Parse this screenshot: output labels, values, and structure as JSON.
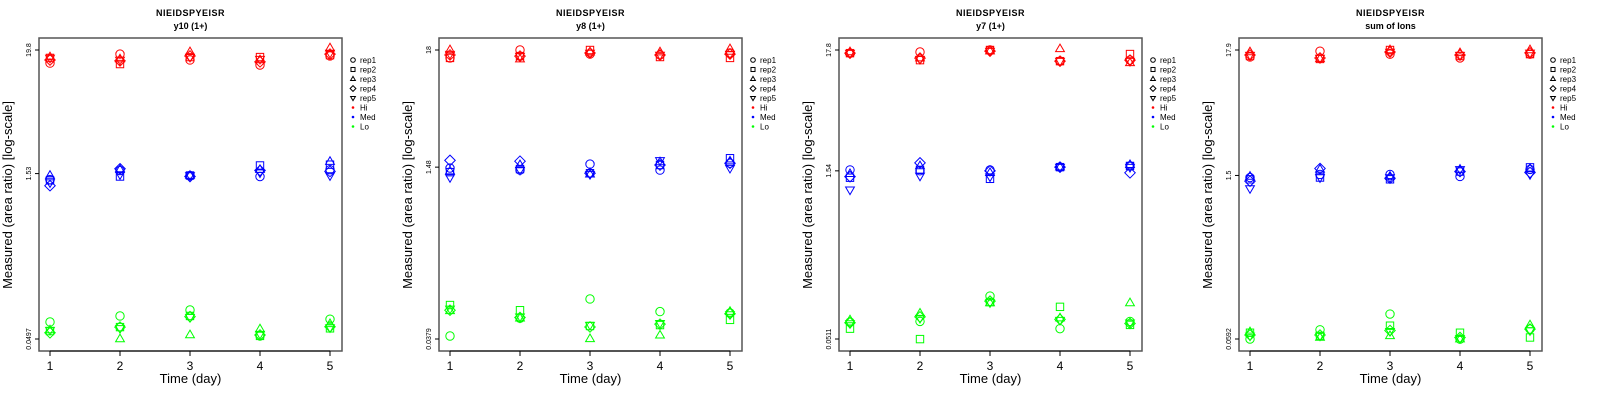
{
  "chart_data": [
    {
      "type": "scatter",
      "title": "NIEIDSPYEISR",
      "subtitle": "y10 (1+)",
      "xlabel": "Time (day)",
      "ylabel": "Measured (area ratio) [log-scale]",
      "yscale": "log",
      "x": [
        1,
        2,
        3,
        4,
        5
      ],
      "xtick_labels": [
        "1",
        "2",
        "3",
        "4",
        "5"
      ],
      "ytick_values": [
        0.0497,
        1.53,
        19.8
      ],
      "ytick_labels": [
        "0.0497",
        "1.53",
        "19.8"
      ],
      "legend_position": "right",
      "series": [
        {
          "level": "Hi",
          "rep": "rep1",
          "values": [
            15.1,
            18.2,
            16.1,
            14.5,
            17.5
          ]
        },
        {
          "level": "Hi",
          "rep": "rep2",
          "values": [
            16.8,
            14.8,
            17.1,
            17.1,
            17.8
          ]
        },
        {
          "level": "Hi",
          "rep": "rep3",
          "values": [
            17.1,
            16.4,
            19.0,
            16.1,
            20.6
          ]
        },
        {
          "level": "Hi",
          "rep": "rep4",
          "values": [
            16.1,
            15.8,
            17.5,
            15.5,
            18.2
          ]
        },
        {
          "level": "Hi",
          "rep": "rep5",
          "values": [
            16.8,
            16.1,
            17.1,
            16.4,
            18.6
          ]
        },
        {
          "level": "Med",
          "rep": "rep1",
          "values": [
            1.35,
            1.63,
            1.47,
            1.44,
            1.66
          ]
        },
        {
          "level": "Med",
          "rep": "rep2",
          "values": [
            1.33,
            1.44,
            1.47,
            1.81,
            1.84
          ]
        },
        {
          "level": "Med",
          "rep": "rep3",
          "values": [
            1.47,
            1.66,
            1.47,
            1.66,
            1.96
          ]
        },
        {
          "level": "Med",
          "rep": "rep4",
          "values": [
            1.19,
            1.69,
            1.44,
            1.63,
            1.6
          ]
        },
        {
          "level": "Med",
          "rep": "rep5",
          "values": [
            1.27,
            1.5,
            1.47,
            1.56,
            1.47
          ]
        },
        {
          "level": "Lo",
          "rep": "rep1",
          "values": [
            0.0707,
            0.0801,
            0.0907,
            0.053,
            0.075
          ]
        },
        {
          "level": "Lo",
          "rep": "rep2",
          "values": [
            0.0586,
            0.0636,
            0.0801,
            0.053,
            0.062
          ]
        },
        {
          "level": "Lo",
          "rep": "rep3",
          "values": [
            0.0598,
            0.0497,
            0.054,
            0.061,
            0.068
          ]
        },
        {
          "level": "Lo",
          "rep": "rep4",
          "values": [
            0.0565,
            0.0636,
            0.079,
            0.054,
            0.064
          ]
        },
        {
          "level": "Lo",
          "rep": "rep5",
          "values": [
            0.0598,
            0.062,
            0.078,
            0.055,
            0.063
          ]
        }
      ]
    },
    {
      "type": "scatter",
      "title": "NIEIDSPYEISR",
      "subtitle": "y8 (1+)",
      "xlabel": "Time (day)",
      "ylabel": "Measured (area ratio) [log-scale]",
      "yscale": "log",
      "x": [
        1,
        2,
        3,
        4,
        5
      ],
      "xtick_labels": [
        "1",
        "2",
        "3",
        "4",
        "5"
      ],
      "ytick_values": [
        0.0379,
        1.48,
        18
      ],
      "ytick_labels": [
        "0.0379",
        "1.48",
        "18"
      ],
      "legend_position": "right",
      "series": [
        {
          "level": "Hi",
          "rep": "rep1",
          "values": [
            15.2,
            18.0,
            16.5,
            16.2,
            16.9
          ]
        },
        {
          "level": "Hi",
          "rep": "rep2",
          "values": [
            15.2,
            15.8,
            18.0,
            15.5,
            15.2
          ]
        },
        {
          "level": "Hi",
          "rep": "rep3",
          "values": [
            18.0,
            14.8,
            17.2,
            17.2,
            18.4
          ]
        },
        {
          "level": "Hi",
          "rep": "rep4",
          "values": [
            16.2,
            15.8,
            16.9,
            16.2,
            16.5
          ]
        },
        {
          "level": "Hi",
          "rep": "rep5",
          "values": [
            16.5,
            15.8,
            16.9,
            16.2,
            16.5
          ]
        },
        {
          "level": "Med",
          "rep": "rep1",
          "values": [
            1.45,
            1.39,
            1.58,
            1.39,
            1.61
          ]
        },
        {
          "level": "Med",
          "rep": "rep2",
          "values": [
            1.33,
            1.42,
            1.3,
            1.55,
            1.79
          ]
        },
        {
          "level": "Med",
          "rep": "rep3",
          "values": [
            1.36,
            1.55,
            1.27,
            1.65,
            1.68
          ]
        },
        {
          "level": "Med",
          "rep": "rep4",
          "values": [
            1.71,
            1.68,
            1.3,
            1.55,
            1.61
          ]
        },
        {
          "level": "Med",
          "rep": "rep5",
          "values": [
            1.19,
            1.39,
            1.27,
            1.71,
            1.45
          ]
        },
        {
          "level": "Lo",
          "rep": "rep1",
          "values": [
            0.0404,
            0.059,
            0.089,
            0.068,
            0.066
          ]
        },
        {
          "level": "Lo",
          "rep": "rep2",
          "values": [
            0.0782,
            0.07,
            0.05,
            0.051,
            0.057
          ]
        },
        {
          "level": "Lo",
          "rep": "rep3",
          "values": [
            0.069,
            0.059,
            0.038,
            0.041,
            0.068
          ]
        },
        {
          "level": "Lo",
          "rep": "rep4",
          "values": [
            0.07,
            0.06,
            0.049,
            0.052,
            0.065
          ]
        },
        {
          "level": "Lo",
          "rep": "rep5",
          "values": [
            0.072,
            0.061,
            0.051,
            0.053,
            0.064
          ]
        }
      ]
    },
    {
      "type": "scatter",
      "title": "NIEIDSPYEISR",
      "subtitle": "y7 (1+)",
      "xlabel": "Time (day)",
      "ylabel": "Measured (area ratio) [log-scale]",
      "yscale": "log",
      "x": [
        1,
        2,
        3,
        4,
        5
      ],
      "xtick_labels": [
        "1",
        "2",
        "3",
        "4",
        "5"
      ],
      "ytick_values": [
        0.0511,
        1.54,
        17.8
      ],
      "ytick_labels": [
        "0.0511",
        "1.54",
        "17.8"
      ],
      "legend_position": "right",
      "series": [
        {
          "level": "Hi",
          "rep": "rep1",
          "values": [
            16.7,
            17.1,
            17.8,
            14.2,
            14.5
          ]
        },
        {
          "level": "Hi",
          "rep": "rep2",
          "values": [
            16.7,
            14.5,
            17.8,
            14.2,
            16.4
          ]
        },
        {
          "level": "Hi",
          "rep": "rep3",
          "values": [
            17.1,
            15.1,
            17.4,
            18.2,
            13.7
          ]
        },
        {
          "level": "Hi",
          "rep": "rep4",
          "values": [
            16.7,
            15.1,
            17.4,
            14.2,
            14.5
          ]
        },
        {
          "level": "Hi",
          "rep": "rep5",
          "values": [
            16.7,
            14.8,
            17.4,
            14.2,
            14.2
          ]
        },
        {
          "level": "Med",
          "rep": "rep1",
          "values": [
            1.57,
            1.54,
            1.57,
            1.66,
            1.7
          ]
        },
        {
          "level": "Med",
          "rep": "rep2",
          "values": [
            1.34,
            1.57,
            1.31,
            1.66,
            1.7
          ]
        },
        {
          "level": "Med",
          "rep": "rep3",
          "values": [
            1.45,
            1.7,
            1.48,
            1.66,
            1.74
          ]
        },
        {
          "level": "Med",
          "rep": "rep4",
          "values": [
            1.37,
            1.81,
            1.54,
            1.66,
            1.48
          ]
        },
        {
          "level": "Med",
          "rep": "rep5",
          "values": [
            1.05,
            1.39,
            1.37,
            1.66,
            1.66
          ]
        },
        {
          "level": "Lo",
          "rep": "rep1",
          "values": [
            0.072,
            0.073,
            0.122,
            0.063,
            0.073
          ]
        },
        {
          "level": "Lo",
          "rep": "rep2",
          "values": [
            0.063,
            0.051,
            0.108,
            0.098,
            0.068
          ]
        },
        {
          "level": "Lo",
          "rep": "rep3",
          "values": [
            0.075,
            0.086,
            0.106,
            0.078,
            0.106
          ]
        },
        {
          "level": "Lo",
          "rep": "rep4",
          "values": [
            0.071,
            0.08,
            0.11,
            0.076,
            0.07
          ]
        },
        {
          "level": "Lo",
          "rep": "rep5",
          "values": [
            0.07,
            0.078,
            0.107,
            0.075,
            0.071
          ]
        }
      ]
    },
    {
      "type": "scatter",
      "title": "NIEIDSPYEISR",
      "subtitle": "sum of Ions",
      "xlabel": "Time (day)",
      "ylabel": "Measured (area ratio) [log-scale]",
      "yscale": "log",
      "x": [
        1,
        2,
        3,
        4,
        5
      ],
      "xtick_labels": [
        "1",
        "2",
        "3",
        "4",
        "5"
      ],
      "ytick_values": [
        0.0592,
        1.5,
        17.9
      ],
      "ytick_labels": [
        "0.0592",
        "1.5",
        "17.9"
      ],
      "legend_position": "right",
      "series": [
        {
          "level": "Hi",
          "rep": "rep1",
          "values": [
            15.6,
            17.5,
            16.5,
            15.3,
            16.5
          ]
        },
        {
          "level": "Hi",
          "rep": "rep2",
          "values": [
            15.9,
            15.0,
            17.9,
            15.9,
            16.5
          ]
        },
        {
          "level": "Hi",
          "rep": "rep3",
          "values": [
            17.2,
            15.0,
            17.9,
            16.9,
            17.9
          ]
        },
        {
          "level": "Hi",
          "rep": "rep4",
          "values": [
            16.2,
            15.3,
            17.2,
            16.2,
            16.9
          ]
        },
        {
          "level": "Hi",
          "rep": "rep5",
          "values": [
            16.2,
            15.3,
            17.2,
            16.2,
            16.9
          ]
        },
        {
          "level": "Med",
          "rep": "rep1",
          "values": [
            1.44,
            1.53,
            1.53,
            1.47,
            1.69
          ]
        },
        {
          "level": "Med",
          "rep": "rep2",
          "values": [
            1.39,
            1.44,
            1.39,
            1.62,
            1.76
          ]
        },
        {
          "level": "Med",
          "rep": "rep3",
          "values": [
            1.47,
            1.69,
            1.47,
            1.69,
            1.72
          ]
        },
        {
          "level": "Med",
          "rep": "rep4",
          "values": [
            1.34,
            1.72,
            1.42,
            1.62,
            1.59
          ]
        },
        {
          "level": "Med",
          "rep": "rep5",
          "values": [
            1.16,
            1.44,
            1.44,
            1.69,
            1.53
          ]
        },
        {
          "level": "Lo",
          "rep": "rep1",
          "values": [
            0.0592,
            0.071,
            0.097,
            0.059,
            0.072
          ]
        },
        {
          "level": "Lo",
          "rep": "rep2",
          "values": [
            0.067,
            0.063,
            0.077,
            0.067,
            0.061
          ]
        },
        {
          "level": "Lo",
          "rep": "rep3",
          "values": [
            0.068,
            0.061,
            0.063,
            0.059,
            0.078
          ]
        },
        {
          "level": "Lo",
          "rep": "rep4",
          "values": [
            0.064,
            0.064,
            0.07,
            0.061,
            0.072
          ]
        },
        {
          "level": "Lo",
          "rep": "rep5",
          "values": [
            0.063,
            0.063,
            0.069,
            0.06,
            0.07
          ]
        }
      ]
    }
  ],
  "legend": {
    "reps": [
      {
        "label": "rep1",
        "symbol": "circle"
      },
      {
        "label": "rep2",
        "symbol": "square"
      },
      {
        "label": "rep3",
        "symbol": "triangle-up"
      },
      {
        "label": "rep4",
        "symbol": "diamond"
      },
      {
        "label": "rep5",
        "symbol": "triangle-down"
      }
    ],
    "levels": [
      {
        "label": "Hi",
        "color": "#ff0000"
      },
      {
        "label": "Med",
        "color": "#0000ff"
      },
      {
        "label": "Lo",
        "color": "#00ff00"
      }
    ]
  }
}
